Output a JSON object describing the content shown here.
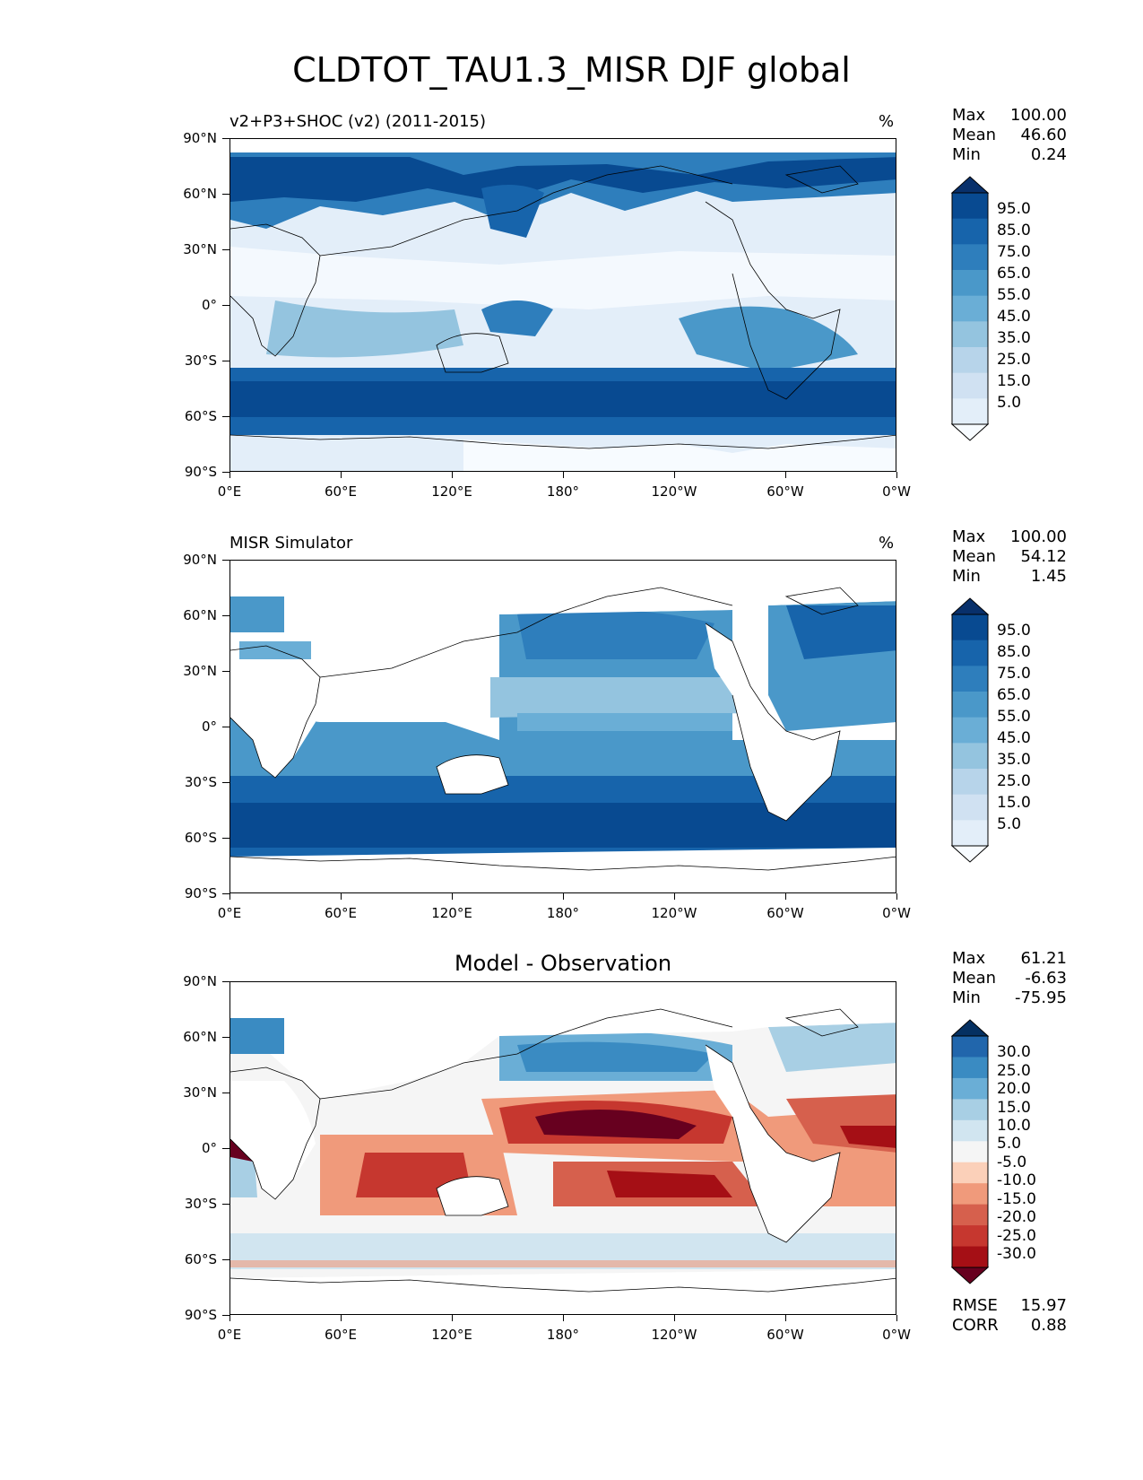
{
  "figure": {
    "title": "CLDTOT_TAU1.3_MISR DJF global",
    "lat_labels": [
      "90°N",
      "60°N",
      "30°N",
      "0°",
      "30°S",
      "60°S",
      "90°S"
    ],
    "lon_labels": [
      "0°E",
      "60°E",
      "120°E",
      "180°",
      "120°W",
      "60°W",
      "0°W"
    ]
  },
  "panels": [
    {
      "title": "v2+P3+SHOC (v2) (2011-2015)",
      "units": "%",
      "stats": {
        "max_label": "Max",
        "max": "100.00",
        "mean_label": "Mean",
        "mean": "46.60",
        "min_label": "Min",
        "min": "0.24"
      },
      "colorbar": {
        "labels": [
          "95.0",
          "85.0",
          "75.0",
          "65.0",
          "55.0",
          "45.0",
          "35.0",
          "25.0",
          "15.0",
          "5.0"
        ]
      }
    },
    {
      "title": "MISR Simulator",
      "units": "%",
      "stats": {
        "max_label": "Max",
        "max": "100.00",
        "mean_label": "Mean",
        "mean": "54.12",
        "min_label": "Min",
        "min": "1.45"
      },
      "colorbar": {
        "labels": [
          "95.0",
          "85.0",
          "75.0",
          "65.0",
          "55.0",
          "45.0",
          "35.0",
          "25.0",
          "15.0",
          "5.0"
        ]
      }
    },
    {
      "title": "Model - Observation",
      "units": "",
      "stats": {
        "max_label": "Max",
        "max": "61.21",
        "mean_label": "Mean",
        "mean": "-6.63",
        "min_label": "Min",
        "min": "-75.95"
      },
      "colorbar": {
        "labels": [
          "30.0",
          "25.0",
          "20.0",
          "15.0",
          "10.0",
          "5.0",
          "-5.0",
          "-10.0",
          "-15.0",
          "-20.0",
          "-25.0",
          "-30.0"
        ]
      },
      "rmse_label": "RMSE",
      "rmse": "15.97",
      "corr_label": "CORR",
      "corr": "0.88"
    }
  ],
  "colors": {
    "blues": [
      "#f7fbff",
      "#e3eef9",
      "#d0e1f2",
      "#b7d4ea",
      "#94c4df",
      "#6aaed6",
      "#4a98c9",
      "#2e7ebc",
      "#1764ab",
      "#084a91",
      "#08306b"
    ],
    "diverging": [
      "#67001f",
      "#a50f15",
      "#c6372f",
      "#d6604d",
      "#f09a7b",
      "#fbd0b9",
      "#f5f5f5",
      "#d1e5f0",
      "#a8cfe4",
      "#6aaed6",
      "#3a8bc2",
      "#2166ac",
      "#053061"
    ]
  }
}
